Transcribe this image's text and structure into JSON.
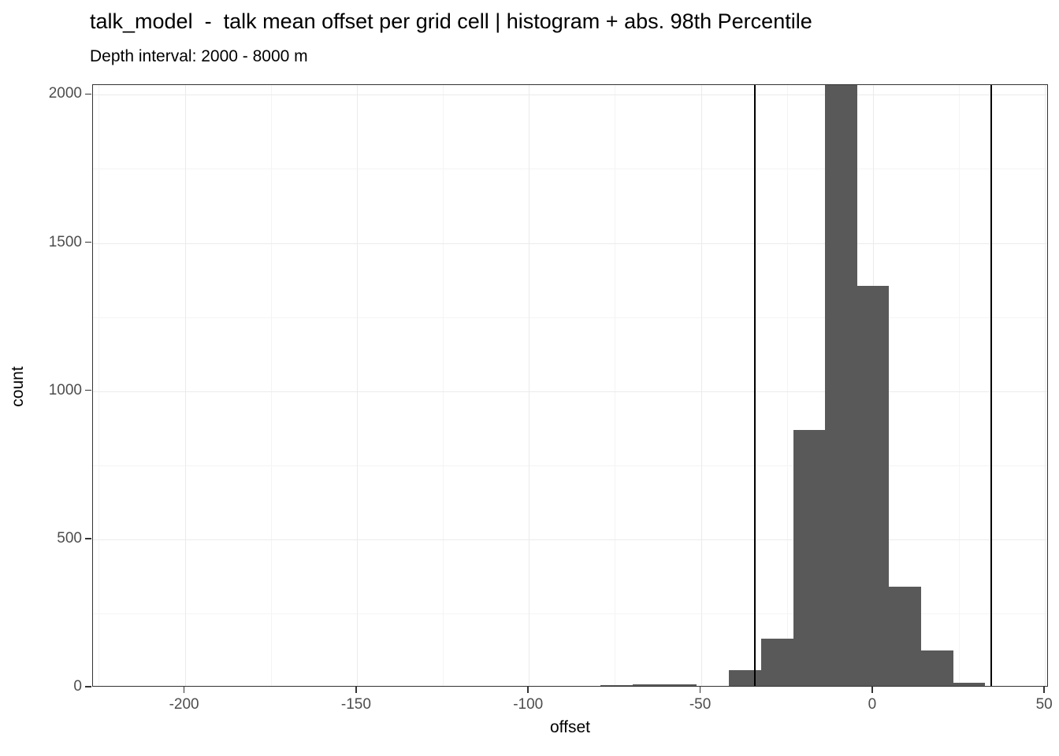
{
  "header": {
    "title": "talk_model  -  talk mean offset per grid cell | histogram + abs. 98th Percentile",
    "subtitle": "Depth interval: 2000 - 8000 m"
  },
  "chart_data": {
    "type": "bar",
    "subtype": "histogram",
    "title": "talk_model  -  talk mean offset per grid cell | histogram + abs. 98th Percentile",
    "subtitle": "Depth interval: 2000 - 8000 m",
    "xlabel": "offset",
    "ylabel": "count",
    "xlim": [
      -226.7,
      51.1
    ],
    "ylim": [
      0,
      2033
    ],
    "x_ticks": [
      -200,
      -150,
      -100,
      -50,
      0,
      50
    ],
    "y_ticks": [
      0,
      500,
      1000,
      1500,
      2000
    ],
    "x_minor": [
      -225,
      -175,
      -125,
      -75,
      -25,
      25
    ],
    "y_minor": [
      250,
      750,
      1250,
      1750
    ],
    "grid": "on",
    "legend": "none",
    "binwidth": 9.3,
    "bins": [
      {
        "x0": -97.8,
        "x1": -88.5,
        "count": 4
      },
      {
        "x0": -88.5,
        "x1": -79.2,
        "count": 4
      },
      {
        "x0": -79.2,
        "x1": -69.8,
        "count": 7
      },
      {
        "x0": -69.8,
        "x1": -60.5,
        "count": 11
      },
      {
        "x0": -60.5,
        "x1": -51.2,
        "count": 11
      },
      {
        "x0": -51.2,
        "x1": -41.9,
        "count": 6
      },
      {
        "x0": -41.9,
        "x1": -32.6,
        "count": 58
      },
      {
        "x0": -32.6,
        "x1": -23.2,
        "count": 165
      },
      {
        "x0": -23.2,
        "x1": -13.9,
        "count": 870
      },
      {
        "x0": -13.9,
        "x1": -4.6,
        "count": 2035
      },
      {
        "x0": -4.6,
        "x1": 4.7,
        "count": 1355
      },
      {
        "x0": 4.7,
        "x1": 14.0,
        "count": 340
      },
      {
        "x0": 14.0,
        "x1": 23.3,
        "count": 125
      },
      {
        "x0": 23.3,
        "x1": 32.6,
        "count": 17
      }
    ],
    "vlines": [
      -34.4,
      34.4
    ],
    "colors": {
      "bar_fill": "#595959",
      "panel_border": "#333333",
      "grid_major": "#ebebeb",
      "grid_minor": "#f4f4f4",
      "axis_text": "#4d4d4d",
      "tick_mark": "#333333",
      "title_text": "#000000",
      "vline": "#000000",
      "background": "#ffffff"
    }
  }
}
